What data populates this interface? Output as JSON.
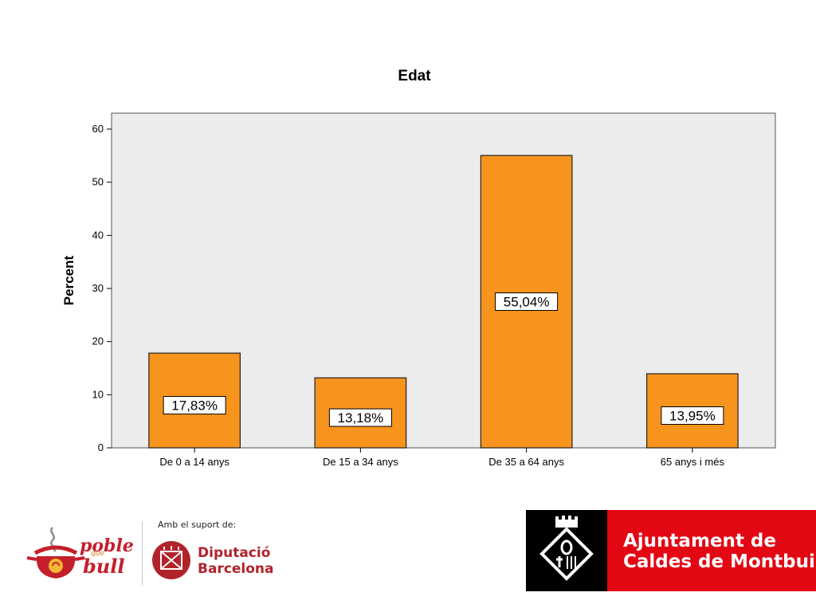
{
  "chart_data": {
    "type": "bar",
    "title": "Edat",
    "xlabel": "",
    "ylabel": "Percent",
    "categories": [
      "De 0 a 14 anys",
      "De 15 a 34 anys",
      "De 35 a 64 anys",
      "65 anys i més"
    ],
    "values": [
      17.83,
      13.18,
      55.04,
      13.95
    ],
    "data_labels": [
      "17,83%",
      "13,18%",
      "55,04%",
      "13,95%"
    ],
    "ylim": [
      0,
      63
    ],
    "yticks": [
      0,
      10,
      20,
      30,
      40,
      50,
      60
    ],
    "grid": false,
    "bar_color": "#f7941d",
    "plot_background": "#ececec"
  },
  "footer": {
    "left_logo_line1": "poble",
    "left_logo_que": "que",
    "left_logo_line2": "bull",
    "support_text": "Amb el suport de:",
    "diputacio_line1": "Diputació",
    "diputacio_line2": "Barcelona",
    "ajuntament_line1": "Ajuntament de",
    "ajuntament_line2": "Caldes de Montbui",
    "brand_red": "#e30613",
    "diputacio_red": "#b0232a"
  }
}
